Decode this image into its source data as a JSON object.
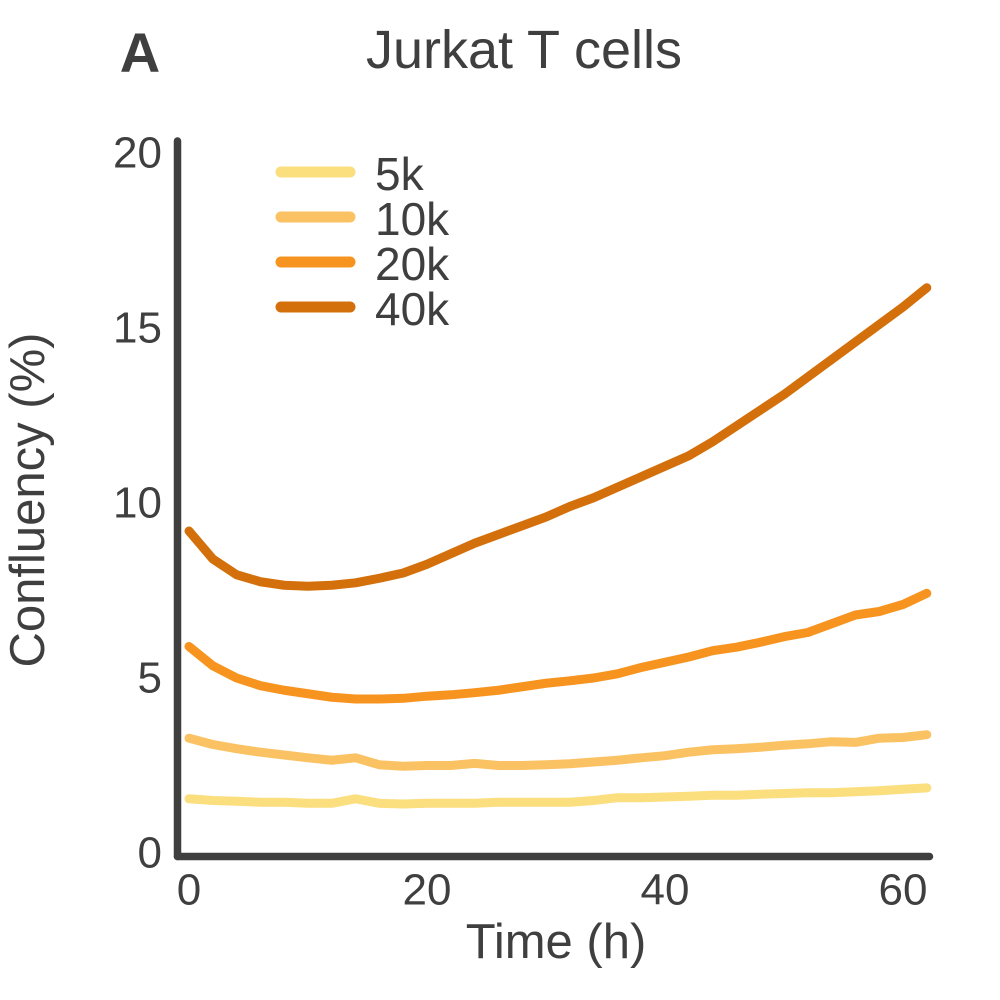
{
  "panel_label": "A",
  "text_color": "#3f3f3f",
  "axis_color": "#3f3f3f",
  "chart_data": {
    "type": "line",
    "title": "Jurkat T cells",
    "xlabel": "Time (h)",
    "ylabel": "Confluency (%)",
    "xlim": [
      0,
      62.5
    ],
    "ylim": [
      0,
      20
    ],
    "xticks": [
      0,
      20,
      40,
      60
    ],
    "yticks": [
      0,
      5,
      10,
      15,
      20
    ],
    "grid": false,
    "legend_position": "upper-left-inside",
    "legend_entries": [
      "5k",
      "10k",
      "20k",
      "40k"
    ],
    "x": [
      0,
      2,
      4,
      6,
      8,
      10,
      12,
      14,
      16,
      18,
      20,
      22,
      24,
      26,
      28,
      30,
      32,
      34,
      36,
      38,
      40,
      42,
      44,
      46,
      48,
      50,
      52,
      54,
      56,
      58,
      60,
      62
    ],
    "series": [
      {
        "name": "5k",
        "color": "#FBDE7E",
        "values": [
          1.55,
          1.5,
          1.48,
          1.45,
          1.45,
          1.42,
          1.42,
          1.55,
          1.42,
          1.4,
          1.42,
          1.42,
          1.42,
          1.45,
          1.45,
          1.45,
          1.45,
          1.5,
          1.58,
          1.58,
          1.6,
          1.62,
          1.65,
          1.65,
          1.68,
          1.7,
          1.72,
          1.72,
          1.75,
          1.78,
          1.82,
          1.86
        ]
      },
      {
        "name": "10k",
        "color": "#FBC263",
        "values": [
          3.28,
          3.1,
          2.98,
          2.88,
          2.8,
          2.72,
          2.65,
          2.72,
          2.52,
          2.48,
          2.5,
          2.5,
          2.56,
          2.5,
          2.5,
          2.52,
          2.55,
          2.6,
          2.65,
          2.72,
          2.78,
          2.88,
          2.95,
          2.98,
          3.02,
          3.08,
          3.12,
          3.18,
          3.16,
          3.28,
          3.3,
          3.38
        ]
      },
      {
        "name": "20k",
        "color": "#F79420",
        "values": [
          5.9,
          5.35,
          5.0,
          4.78,
          4.65,
          4.55,
          4.45,
          4.4,
          4.4,
          4.42,
          4.48,
          4.52,
          4.58,
          4.65,
          4.75,
          4.85,
          4.92,
          5.0,
          5.12,
          5.3,
          5.45,
          5.6,
          5.78,
          5.88,
          6.02,
          6.18,
          6.3,
          6.55,
          6.8,
          6.9,
          7.1,
          7.42
        ]
      },
      {
        "name": "40k",
        "color": "#D4700B",
        "values": [
          9.2,
          8.4,
          7.95,
          7.75,
          7.65,
          7.62,
          7.65,
          7.72,
          7.85,
          8.0,
          8.25,
          8.55,
          8.85,
          9.1,
          9.35,
          9.6,
          9.9,
          10.15,
          10.45,
          10.75,
          11.05,
          11.35,
          11.75,
          12.2,
          12.65,
          13.1,
          13.6,
          14.1,
          14.6,
          15.1,
          15.6,
          16.15
        ]
      }
    ]
  }
}
